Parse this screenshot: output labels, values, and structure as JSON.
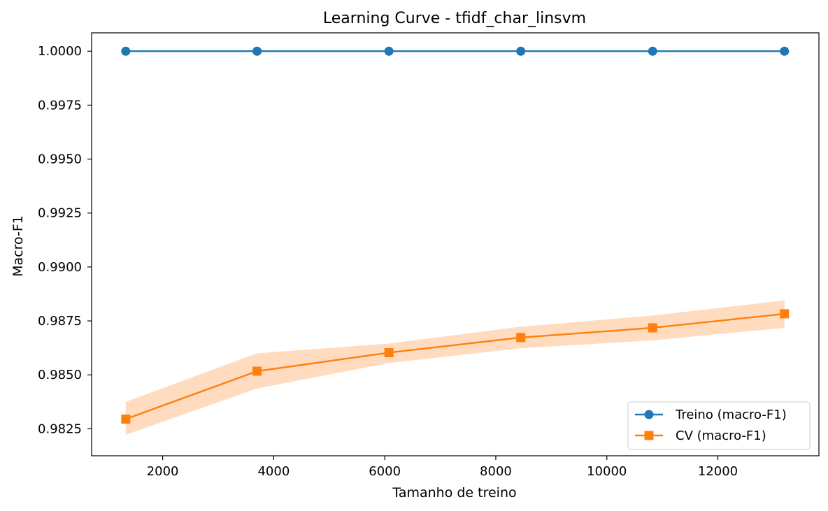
{
  "chart_data": {
    "type": "line",
    "title": "Learning Curve - tfidf_char_linsvm",
    "xlabel": "Tamanho de treino",
    "ylabel": "Macro-F1",
    "xlim": [
      720,
      13820
    ],
    "ylim": [
      0.98125,
      1.00085
    ],
    "x": [
      1335,
      3700,
      6075,
      8450,
      10825,
      13200
    ],
    "xticks": [
      2000,
      4000,
      6000,
      8000,
      10000,
      12000
    ],
    "xtick_labels": [
      "2000",
      "4000",
      "6000",
      "8000",
      "10000",
      "12000"
    ],
    "yticks": [
      0.9825,
      0.985,
      0.9875,
      0.99,
      0.9925,
      0.995,
      0.9975,
      1.0
    ],
    "ytick_labels": [
      "0.9825",
      "0.9850",
      "0.9875",
      "0.9900",
      "0.9925",
      "0.9950",
      "0.9975",
      "1.0000"
    ],
    "grid": false,
    "legend_position": "lower-right",
    "series": [
      {
        "name": "Treino (macro-F1)",
        "marker": "circle",
        "color": "#1f77b4",
        "values": [
          1.0,
          1.0,
          1.0,
          1.0,
          1.0,
          1.0
        ]
      },
      {
        "name": "CV (macro-F1)",
        "marker": "square",
        "color": "#ff7f0e",
        "band_color": "#ffdcbf",
        "values": [
          0.98295,
          0.98517,
          0.98603,
          0.98673,
          0.98718,
          0.98783
        ],
        "band_lower": [
          0.98222,
          0.98437,
          0.98555,
          0.98623,
          0.9866,
          0.98718
        ],
        "band_upper": [
          0.98375,
          0.986,
          0.98645,
          0.98723,
          0.98775,
          0.98845
        ]
      }
    ]
  }
}
